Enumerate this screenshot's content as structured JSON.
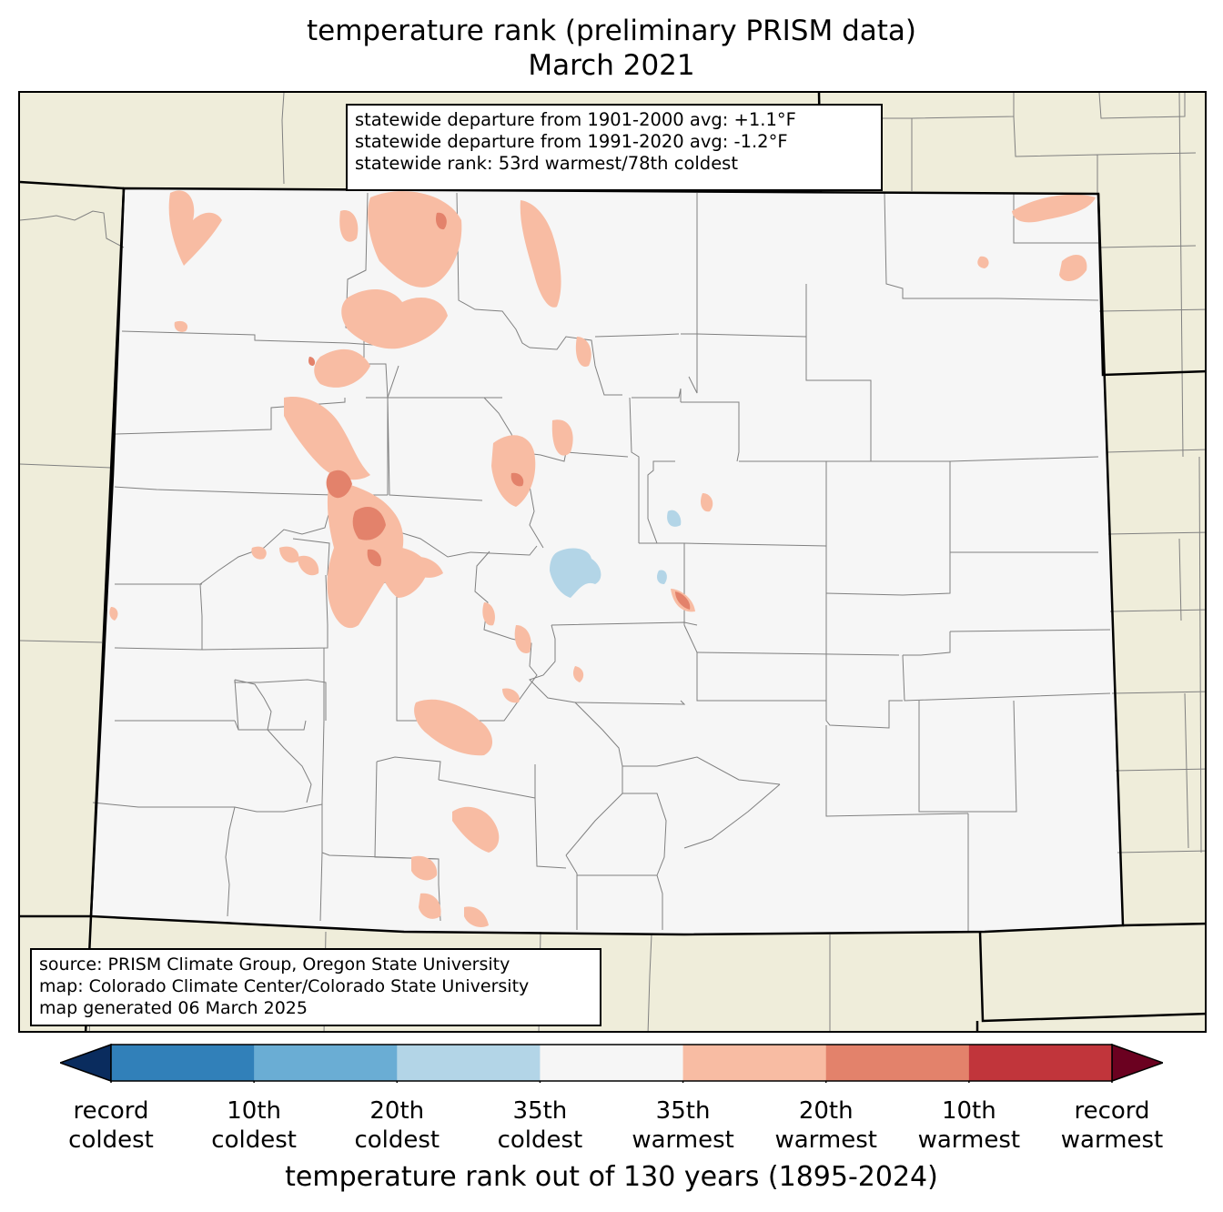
{
  "title": {
    "line1": "temperature rank (preliminary PRISM data)",
    "line2": "March 2021"
  },
  "stats": {
    "line1": "statewide departure from 1901-2000 avg: +1.1°F",
    "line2": "statewide departure from 1991-2020 avg: -1.2°F",
    "line3": "statewide rank: 53rd warmest/78th coldest"
  },
  "source": {
    "line1": "source: PRISM Climate Group, Oregon State University",
    "line2": "map: Colorado Climate Center/Colorado State University",
    "line3": "map generated 06 March 2025"
  },
  "colorbar": {
    "title": "temperature rank out of 130 years (1895-2024)",
    "ticks": [
      {
        "line1": "record",
        "line2": "coldest"
      },
      {
        "line1": "10th",
        "line2": "coldest"
      },
      {
        "line1": "20th",
        "line2": "coldest"
      },
      {
        "line1": "35th",
        "line2": "coldest"
      },
      {
        "line1": "35th",
        "line2": "warmest"
      },
      {
        "line1": "20th",
        "line2": "warmest"
      },
      {
        "line1": "10th",
        "line2": "warmest"
      },
      {
        "line1": "record",
        "line2": "warmest"
      }
    ],
    "colors": {
      "below_record_coldest": "#0a2c5e",
      "record_to_10th_coldest": "#3180b9",
      "10th_to_20th_coldest": "#6aadd4",
      "20th_to_35th_coldest": "#b3d5e7",
      "near_normal": "#f6f6f6",
      "35th_to_20th_warmest": "#f8bca3",
      "20th_to_10th_warmest": "#e3826b",
      "10th_to_record_warmest": "#c1353b",
      "above_record_warmest": "#6b0120"
    }
  },
  "map_colors": {
    "outside_state": "#efedda",
    "state_boundary": "#000000",
    "county_boundary": "#808080"
  }
}
